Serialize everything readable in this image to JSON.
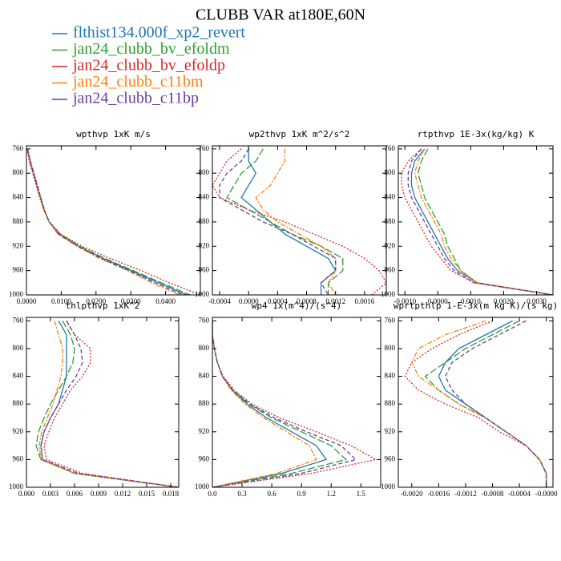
{
  "title": "CLUBB VAR at180E,60N",
  "legend": [
    {
      "name": "flthist134.000f_xp2_revert",
      "color": "#1f77b4",
      "dash": "solid"
    },
    {
      "name": "jan24_clubb_bv_efoldm",
      "color": "#2ca02c",
      "dash": "long-dash"
    },
    {
      "name": "jan24_clubb_bv_efoldp",
      "color": "#d62728",
      "dash": "dotted"
    },
    {
      "name": "jan24_clubb_c11bm",
      "color": "#ff7f0e",
      "dash": "dash-dot"
    },
    {
      "name": "jan24_clubb_c11bp",
      "color": "#6a3d9a",
      "dash": "dashed"
    }
  ],
  "chart_data": [
    {
      "type": "line",
      "title": "wpthvp  1xK m/s",
      "levels": [
        760,
        780,
        800,
        820,
        840,
        860,
        880,
        900,
        920,
        940,
        960,
        980,
        1000
      ],
      "ylim": [
        1000,
        755
      ],
      "yticks": [
        760,
        800,
        840,
        880,
        920,
        960,
        1000
      ],
      "xlim": [
        0,
        0.05
      ],
      "xticks": [
        {
          "value": 0,
          "label": "0.0000"
        },
        {
          "value": 0.01,
          "label": "0.0100"
        },
        {
          "value": 0.02,
          "label": "0.0200"
        },
        {
          "value": 0.03,
          "label": "0.0300"
        },
        {
          "value": 0.04,
          "label": "0.0400"
        }
      ],
      "series": [
        {
          "color": "#1f77b4",
          "values": [
            0.0003,
            0.001,
            0.002,
            0.003,
            0.004,
            0.005,
            0.0065,
            0.0095,
            0.015,
            0.022,
            0.03,
            0.038,
            0.046
          ]
        },
        {
          "color": "#2ca02c",
          "values": [
            0.0003,
            0.001,
            0.002,
            0.003,
            0.004,
            0.0051,
            0.0066,
            0.0097,
            0.0153,
            0.0225,
            0.0307,
            0.0388,
            0.047
          ]
        },
        {
          "color": "#d62728",
          "values": [
            0.0002,
            0.0008,
            0.0018,
            0.0028,
            0.0038,
            0.005,
            0.0065,
            0.0098,
            0.016,
            0.024,
            0.033,
            0.041,
            0.05
          ]
        },
        {
          "color": "#ff7f0e",
          "values": [
            0.0004,
            0.0012,
            0.0022,
            0.0032,
            0.0042,
            0.0052,
            0.0065,
            0.009,
            0.0145,
            0.021,
            0.029,
            0.036,
            0.044
          ]
        },
        {
          "color": "#6a3d9a",
          "values": [
            0.0003,
            0.0011,
            0.0021,
            0.0031,
            0.0041,
            0.0051,
            0.0066,
            0.0093,
            0.0148,
            0.0215,
            0.0295,
            0.037,
            0.045
          ]
        }
      ]
    },
    {
      "type": "line",
      "title": "wp2thvp  1xK m^2/s^2",
      "levels": [
        760,
        780,
        800,
        820,
        840,
        860,
        880,
        900,
        920,
        940,
        960,
        980,
        1000
      ],
      "ylim": [
        1000,
        755
      ],
      "yticks": [
        760,
        800,
        840,
        880,
        920,
        960,
        1000
      ],
      "xlim": [
        -0.0005,
        0.0019
      ],
      "xticks": [
        {
          "value": -0.0004,
          "label": "-0.0004"
        },
        {
          "value": 0,
          "label": "0.0000"
        },
        {
          "value": 0.0004,
          "label": "0.0004"
        },
        {
          "value": 0.0008,
          "label": "0.0008"
        },
        {
          "value": 0.0012,
          "label": "0.0012"
        },
        {
          "value": 0.0016,
          "label": "0.0016"
        }
      ],
      "series": [
        {
          "color": "#1f77b4",
          "values": [
            0.0,
            0.0,
            0.0001,
            0.0,
            -0.0001,
            0.0001,
            0.0003,
            0.0005,
            0.0008,
            0.0011,
            0.0012,
            0.001,
            0.001
          ]
        },
        {
          "color": "#2ca02c",
          "values": [
            0.0002,
            0.0001,
            -0.0001,
            -0.0002,
            -0.0003,
            0.0,
            0.0003,
            0.0006,
            0.001,
            0.0013,
            0.0013,
            0.0011,
            0.0011
          ]
        },
        {
          "color": "#d62728",
          "values": [
            -0.0001,
            -0.0003,
            -0.0004,
            -0.0005,
            -0.0004,
            0.0,
            0.0005,
            0.0009,
            0.0013,
            0.0016,
            0.0018,
            0.0019,
            0.0017
          ]
        },
        {
          "color": "#ff7f0e",
          "values": [
            0.0005,
            0.0005,
            0.0004,
            0.0003,
            0.0001,
            0.0002,
            0.0004,
            0.0007,
            0.001,
            0.0012,
            0.0012,
            0.0011,
            0.0012
          ]
        },
        {
          "color": "#6a3d9a",
          "values": [
            0.0,
            -0.0001,
            -0.0003,
            -0.0004,
            -0.0004,
            -0.0001,
            0.0002,
            0.0006,
            0.0009,
            0.0012,
            0.0012,
            0.001,
            0.0011
          ]
        }
      ]
    },
    {
      "type": "line",
      "title": "rtpthvp  1E-3x(kg/kg) K",
      "levels": [
        760,
        780,
        800,
        820,
        840,
        860,
        880,
        900,
        920,
        940,
        960,
        980,
        1000
      ],
      "ylim": [
        1000,
        755
      ],
      "yticks": [
        760,
        800,
        840,
        880,
        920,
        960,
        1000
      ],
      "xlim": [
        -0.0012,
        0.0035
      ],
      "xticks": [
        {
          "value": -0.001,
          "label": "-0.0010"
        },
        {
          "value": 0,
          "label": "0.0000"
        },
        {
          "value": 0.001,
          "label": "0.0010"
        },
        {
          "value": 0.002,
          "label": "0.0020"
        },
        {
          "value": 0.003,
          "label": "0.0030"
        }
      ],
      "series": [
        {
          "color": "#1f77b4",
          "values": [
            -0.0004,
            -0.0007,
            -0.0008,
            -0.0008,
            -0.0007,
            -0.0005,
            -0.0003,
            -0.0001,
            0.0001,
            0.0003,
            0.0006,
            0.0012,
            0.0035
          ]
        },
        {
          "color": "#2ca02c",
          "values": [
            -0.0003,
            -0.0005,
            -0.0006,
            -0.0005,
            -0.0004,
            -0.0002,
            0.0,
            0.0002,
            0.0003,
            0.0005,
            0.0007,
            0.0012,
            0.0035
          ]
        },
        {
          "color": "#d62728",
          "values": [
            -0.0005,
            -0.0009,
            -0.0011,
            -0.0011,
            -0.001,
            -0.0008,
            -0.0006,
            -0.0004,
            -0.0002,
            0.0001,
            0.0004,
            0.0011,
            0.0035
          ]
        },
        {
          "color": "#ff7f0e",
          "values": [
            -0.0004,
            -0.0006,
            -0.0007,
            -0.0006,
            -0.0005,
            -0.0003,
            -0.0001,
            0.0001,
            0.0002,
            0.0004,
            0.0007,
            0.0012,
            0.0035
          ]
        },
        {
          "color": "#6a3d9a",
          "values": [
            -0.0005,
            -0.0008,
            -0.0009,
            -0.0009,
            -0.0008,
            -0.0006,
            -0.0004,
            -0.0002,
            0.0,
            0.0002,
            0.0005,
            0.0011,
            0.0035
          ]
        }
      ]
    },
    {
      "type": "line",
      "title": "thlpthvp  1xK^2",
      "levels": [
        760,
        780,
        800,
        820,
        840,
        860,
        880,
        900,
        920,
        940,
        960,
        980,
        1000
      ],
      "ylim": [
        1000,
        755
      ],
      "yticks": [
        760,
        800,
        840,
        880,
        920,
        960,
        1000
      ],
      "xlim": [
        0,
        0.019
      ],
      "xticks": [
        {
          "value": 0,
          "label": "0.000"
        },
        {
          "value": 0.003,
          "label": "0.003"
        },
        {
          "value": 0.006,
          "label": "0.006"
        },
        {
          "value": 0.009,
          "label": "0.009"
        },
        {
          "value": 0.012,
          "label": "0.012"
        },
        {
          "value": 0.015,
          "label": "0.015"
        },
        {
          "value": 0.018,
          "label": "0.018"
        }
      ],
      "series": [
        {
          "color": "#1f77b4",
          "values": [
            0.004,
            0.005,
            0.005,
            0.005,
            0.005,
            0.0045,
            0.004,
            0.003,
            0.0022,
            0.0018,
            0.002,
            0.006,
            0.019
          ]
        },
        {
          "color": "#2ca02c",
          "values": [
            0.0045,
            0.0055,
            0.006,
            0.0058,
            0.005,
            0.004,
            0.003,
            0.0022,
            0.0015,
            0.0012,
            0.0018,
            0.006,
            0.019
          ]
        },
        {
          "color": "#d62728",
          "values": [
            0.005,
            0.006,
            0.008,
            0.008,
            0.007,
            0.0055,
            0.0045,
            0.0035,
            0.0028,
            0.0022,
            0.0025,
            0.007,
            0.019
          ]
        },
        {
          "color": "#ff7f0e",
          "values": [
            0.0035,
            0.004,
            0.0045,
            0.0045,
            0.0043,
            0.0038,
            0.0033,
            0.0026,
            0.0019,
            0.0016,
            0.0018,
            0.006,
            0.019
          ]
        },
        {
          "color": "#6a3d9a",
          "values": [
            0.005,
            0.006,
            0.0068,
            0.007,
            0.0062,
            0.005,
            0.004,
            0.003,
            0.0022,
            0.0018,
            0.002,
            0.0065,
            0.019
          ]
        }
      ]
    },
    {
      "type": "line",
      "title": "wp4  1x(m^4)/(s^4)",
      "levels": [
        760,
        780,
        800,
        820,
        840,
        860,
        880,
        900,
        920,
        940,
        960,
        980,
        1000
      ],
      "ylim": [
        1000,
        755
      ],
      "yticks": [
        760,
        800,
        840,
        880,
        920,
        960,
        1000
      ],
      "xlim": [
        0,
        1.7
      ],
      "xticks": [
        {
          "value": 0,
          "label": "0.0"
        },
        0.3,
        0.6,
        0.9,
        1.2,
        1.5
      ],
      "series": [
        {
          "color": "#1f77b4",
          "values": [
            0.0,
            0.0,
            0.02,
            0.05,
            0.1,
            0.2,
            0.35,
            0.55,
            0.8,
            1.05,
            1.15,
            0.7,
            0.0
          ]
        },
        {
          "color": "#2ca02c",
          "values": [
            0.0,
            0.0,
            0.02,
            0.05,
            0.1,
            0.2,
            0.37,
            0.6,
            0.9,
            1.2,
            1.35,
            0.8,
            0.0
          ]
        },
        {
          "color": "#d62728",
          "values": [
            0.0,
            0.0,
            0.02,
            0.05,
            0.11,
            0.22,
            0.4,
            0.68,
            1.05,
            1.4,
            1.65,
            1.0,
            0.0
          ]
        },
        {
          "color": "#ff7f0e",
          "values": [
            0.0,
            0.0,
            0.02,
            0.05,
            0.1,
            0.19,
            0.33,
            0.52,
            0.75,
            0.98,
            1.05,
            0.65,
            0.0
          ]
        },
        {
          "color": "#6a3d9a",
          "values": [
            0.0,
            0.0,
            0.02,
            0.05,
            0.1,
            0.21,
            0.38,
            0.63,
            0.95,
            1.3,
            1.45,
            0.9,
            0.0
          ]
        }
      ]
    },
    {
      "type": "line",
      "title": "wprtpthlp  1-E-3x(m kg K)/(s kg)",
      "levels": [
        760,
        780,
        800,
        820,
        840,
        860,
        880,
        900,
        920,
        940,
        960,
        980,
        1000
      ],
      "ylim": [
        1000,
        755
      ],
      "yticks": [
        760,
        800,
        840,
        880,
        920,
        960,
        1000
      ],
      "xlim": [
        -0.0022,
        0.0001
      ],
      "xticks": [
        {
          "value": -0.002,
          "label": "-0.0020"
        },
        {
          "value": -0.0016,
          "label": "-0.0016"
        },
        {
          "value": -0.0012,
          "label": "-0.0012"
        },
        {
          "value": -0.0008,
          "label": "-0.0008"
        },
        {
          "value": -0.0004,
          "label": "-0.0004"
        },
        {
          "value": 0,
          "label": "-0.0000"
        }
      ],
      "series": [
        {
          "color": "#1f77b4",
          "values": [
            -0.0005,
            -0.0009,
            -0.0013,
            -0.0015,
            -0.0016,
            -0.0015,
            -0.0012,
            -0.0009,
            -0.0006,
            -0.0003,
            -0.0001,
            0.0,
            0.0
          ]
        },
        {
          "color": "#2ca02c",
          "values": [
            -0.0004,
            -0.0008,
            -0.0012,
            -0.0015,
            -0.0018,
            -0.0016,
            -0.0013,
            -0.0009,
            -0.0006,
            -0.0003,
            -0.0001,
            0.0,
            0.0
          ]
        },
        {
          "color": "#d62728",
          "values": [
            -0.0008,
            -0.0013,
            -0.0017,
            -0.002,
            -0.0021,
            -0.0019,
            -0.0015,
            -0.001,
            -0.0007,
            -0.0003,
            -0.0001,
            0.0,
            0.0
          ]
        },
        {
          "color": "#ff7f0e",
          "values": [
            -0.0009,
            -0.0015,
            -0.0019,
            -0.002,
            -0.0019,
            -0.0016,
            -0.0013,
            -0.0009,
            -0.0006,
            -0.0003,
            -0.0001,
            0.0,
            0.0
          ]
        },
        {
          "color": "#6a3d9a",
          "values": [
            -0.0003,
            -0.0007,
            -0.0011,
            -0.0014,
            -0.0015,
            -0.0014,
            -0.0012,
            -0.0009,
            -0.0006,
            -0.0003,
            -0.0001,
            0.0,
            0.0
          ]
        }
      ]
    }
  ]
}
